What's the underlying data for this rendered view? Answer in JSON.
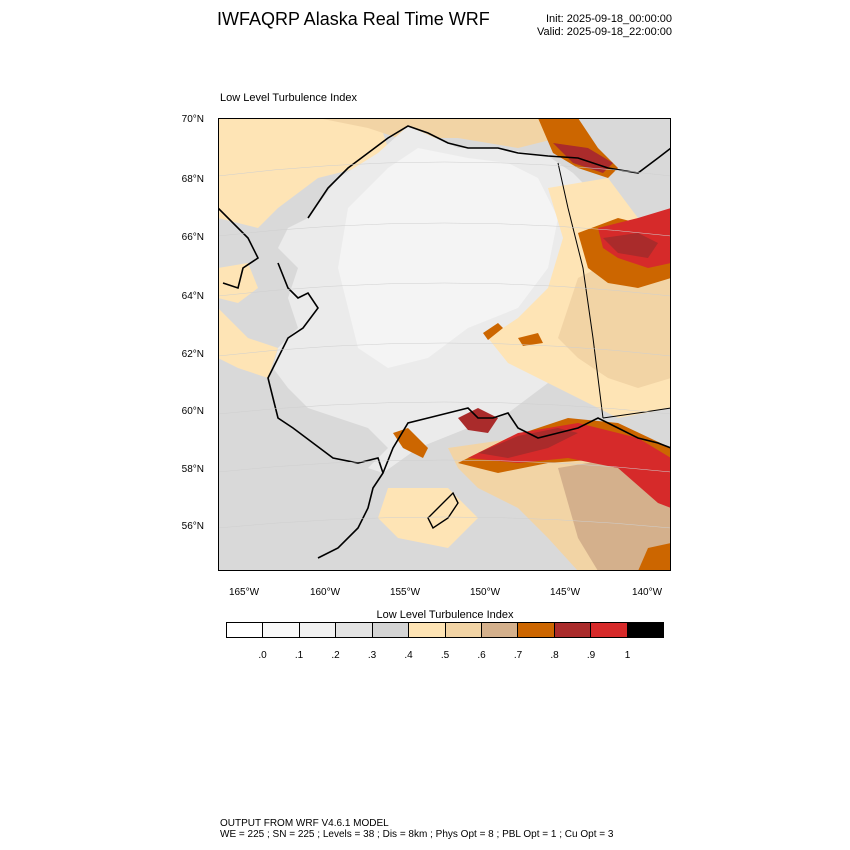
{
  "header": {
    "title": "IWFAQRP Alaska Real Time WRF",
    "init": "Init: 2025-09-18_00:00:00",
    "valid": "Valid: 2025-09-18_22:00:00"
  },
  "panel": {
    "title": "Low Level Turbulence Index"
  },
  "map": {
    "region": "Alaska",
    "lat_labels": [
      "70°N",
      "68°N",
      "66°N",
      "64°N",
      "62°N",
      "60°N",
      "58°N",
      "56°N"
    ],
    "lon_labels": [
      "165°W",
      "160°W",
      "155°W",
      "150°W",
      "145°W",
      "140°W"
    ],
    "field_colors": {
      "ocean_gray": "#d9d9d9",
      "light_gray": "#ebebeb",
      "lighter_gray": "#f4f4f4",
      "peach": "#fee4b5",
      "tan": "#f2d4a5",
      "light_brown": "#d4b08c",
      "orange": "#cc6600",
      "dark_red": "#aa2b2b",
      "red": "#d62a2a"
    }
  },
  "colorbar": {
    "title": "Low Level Turbulence Index",
    "colors": [
      "#ffffff",
      "#f9f9f9",
      "#f1f1f1",
      "#e3e3e3",
      "#d4d4d4",
      "#fee4b5",
      "#f2d4a5",
      "#d4b08c",
      "#cc6600",
      "#aa2b2b",
      "#d62a2a",
      "#000000"
    ],
    "ticks": [
      ".0",
      ".1",
      ".2",
      ".3",
      ".4",
      ".5",
      ".6",
      ".7",
      ".8",
      ".9",
      "1"
    ]
  },
  "footer": {
    "line1": "OUTPUT FROM WRF V4.6.1 MODEL",
    "line2": "WE = 225 ; SN = 225 ; Levels = 38 ; Dis = 8km ; Phys Opt = 8 ; PBL Opt = 1 ; Cu Opt = 3"
  }
}
